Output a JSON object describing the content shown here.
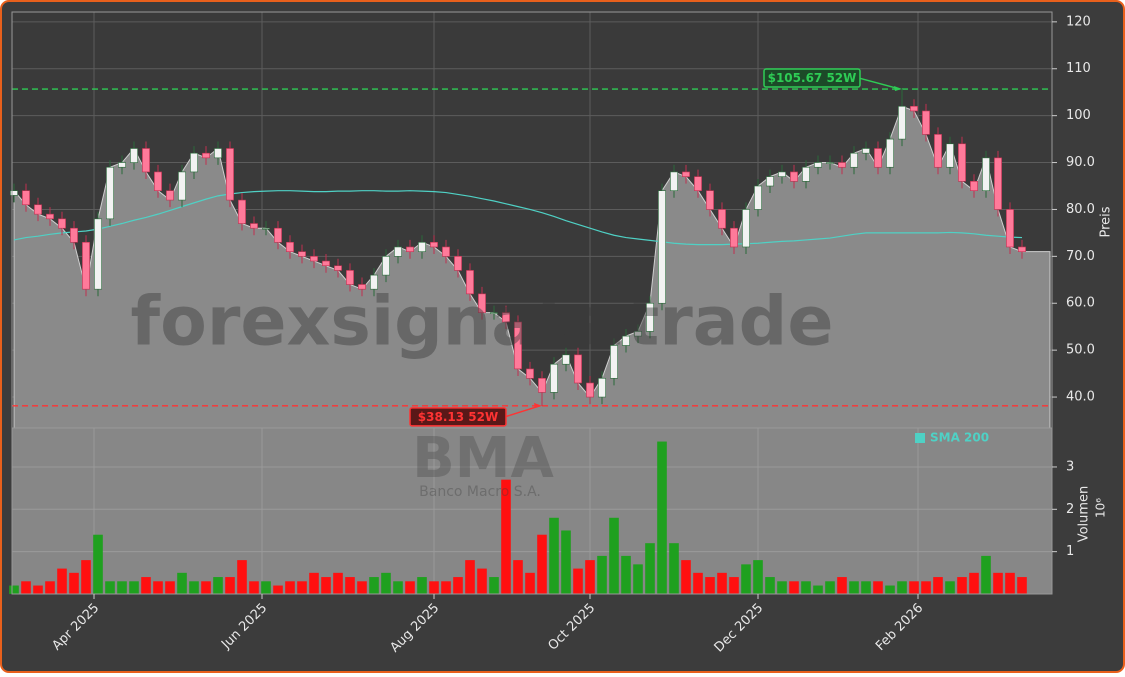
{
  "chart_data": [
    {
      "type": "candlestick",
      "x": [
        0,
        3,
        6,
        9,
        12,
        15,
        18,
        21,
        24,
        27,
        30,
        33,
        36,
        39,
        42,
        45,
        48,
        51,
        54,
        57,
        60,
        63,
        66,
        69,
        72,
        75,
        78,
        81,
        84,
        87,
        90,
        93,
        96,
        99,
        102,
        105,
        108,
        111,
        114,
        117,
        120,
        123,
        126,
        129,
        132,
        135,
        138,
        141,
        144,
        147,
        150,
        153,
        156,
        159,
        162,
        165,
        168,
        171,
        174,
        177,
        180,
        183,
        186,
        189,
        192,
        195,
        198,
        201,
        204,
        207,
        210,
        213,
        216,
        219,
        222,
        225,
        228,
        231,
        234,
        237,
        240,
        243,
        246,
        249,
        252
      ],
      "open": [
        83,
        84,
        81,
        79,
        78,
        76,
        73,
        63,
        78,
        89,
        90,
        93,
        88,
        84,
        82,
        88,
        92,
        91,
        93,
        82,
        77,
        76,
        76,
        73,
        71,
        70,
        69,
        68,
        67,
        64,
        63,
        66,
        70,
        72,
        71,
        73,
        72,
        70,
        67,
        62,
        58,
        58,
        56,
        46,
        44,
        41,
        47,
        49,
        43,
        40,
        44,
        51,
        53,
        54,
        60,
        84,
        88,
        87,
        84,
        80,
        76,
        72,
        80,
        85,
        87,
        88,
        86,
        89,
        90,
        90,
        89,
        92,
        93,
        89,
        95,
        102,
        101,
        96,
        89,
        94,
        86,
        84,
        91,
        80,
        72
      ],
      "high": [
        85.5,
        85.5,
        82.5,
        80.5,
        79.5,
        77.5,
        74.5,
        79.5,
        90.5,
        91.5,
        94.5,
        94.5,
        89.5,
        85.5,
        89.5,
        93.5,
        93.5,
        94.5,
        94.5,
        83.5,
        78.5,
        77.5,
        77.5,
        74.5,
        72.5,
        71.5,
        70.5,
        69.5,
        68.5,
        65.5,
        67.5,
        71.5,
        73.5,
        73.5,
        74.5,
        74.5,
        73.5,
        71.5,
        68.5,
        63.5,
        59.5,
        59.5,
        57.5,
        47.5,
        45.5,
        48.5,
        50.5,
        50.5,
        44.5,
        45.5,
        52.5,
        54.5,
        55.5,
        61.5,
        85.5,
        89.5,
        89.5,
        88.5,
        85.5,
        81.5,
        77.5,
        81.5,
        86.5,
        88.5,
        89.5,
        89.5,
        90.5,
        91.5,
        91.5,
        91.5,
        93.5,
        94.5,
        94.5,
        96.5,
        105.67,
        103.5,
        102.5,
        97.5,
        95.5,
        95.5,
        87.5,
        92.5,
        92.5,
        81.5,
        73.5
      ],
      "low": [
        81.5,
        79.5,
        77.5,
        76.5,
        74.5,
        71.5,
        61.5,
        61.5,
        76.5,
        87.5,
        88.5,
        86.5,
        82.5,
        80.5,
        80.5,
        86.5,
        89.5,
        89.5,
        80.5,
        75.5,
        74.5,
        74.5,
        71.5,
        69.5,
        68.5,
        67.5,
        66.5,
        65.5,
        62.5,
        61.5,
        61.5,
        64.5,
        68.5,
        69.5,
        69.5,
        70.5,
        68.5,
        65.5,
        60.5,
        56.5,
        56.5,
        54.5,
        44.5,
        42.5,
        38.13,
        39.5,
        45.5,
        41.5,
        38.5,
        38.5,
        42.5,
        49.5,
        51.5,
        52.5,
        58.5,
        82.5,
        85.5,
        82.5,
        78.5,
        74.5,
        70.5,
        70.5,
        78.5,
        83.5,
        85.5,
        84.5,
        84.5,
        87.5,
        88.5,
        87.5,
        87.5,
        90.5,
        87.5,
        87.5,
        93.5,
        99.5,
        94.5,
        87.5,
        87.5,
        84.5,
        82.5,
        82.5,
        78.5,
        70.5,
        69.5
      ],
      "close": [
        84,
        81,
        79,
        78,
        76,
        73,
        63,
        78,
        89,
        90,
        93,
        88,
        84,
        82,
        88,
        92,
        91,
        93,
        82,
        77,
        76,
        76,
        73,
        71,
        70,
        69,
        68,
        67,
        64,
        63,
        66,
        70,
        72,
        71,
        73,
        72,
        70,
        67,
        62,
        58,
        58,
        56,
        46,
        44,
        41,
        47,
        49,
        43,
        40,
        44,
        51,
        53,
        54,
        60,
        84,
        88,
        87,
        84,
        80,
        76,
        72,
        80,
        85,
        87,
        88,
        86,
        89,
        90,
        90,
        89,
        92,
        93,
        89,
        95,
        102,
        101,
        96,
        89,
        94,
        86,
        84,
        91,
        80,
        72,
        71
      ],
      "up_color": "#f2f2f2",
      "down_color": "#ff7a9a",
      "area_color": "#8a8a8a",
      "series": [
        {
          "name": "SMA 200",
          "color": "#4fd1c5",
          "values": [
            73.5,
            74,
            74.3,
            74.7,
            75,
            75.2,
            75.4,
            75.8,
            76.4,
            77,
            77.7,
            78.3,
            79,
            79.8,
            80.6,
            81.4,
            82.2,
            82.9,
            83.3,
            83.6,
            83.8,
            83.9,
            84,
            84,
            83.9,
            83.8,
            83.8,
            83.9,
            83.9,
            84,
            84,
            83.9,
            83.9,
            84,
            83.9,
            83.8,
            83.6,
            83.2,
            82.8,
            82.3,
            81.8,
            81.2,
            80.6,
            80,
            79.3,
            78.5,
            77.6,
            76.8,
            76,
            75.2,
            74.5,
            74,
            73.7,
            73.4,
            73.1,
            72.8,
            72.6,
            72.5,
            72.5,
            72.5,
            72.6,
            72.7,
            72.8,
            73,
            73.2,
            73.3,
            73.5,
            73.7,
            73.9,
            74.3,
            74.7,
            75,
            75,
            75,
            75,
            75,
            75,
            75,
            75.1,
            75,
            74.8,
            74.5,
            74.3,
            74.1,
            74
          ]
        }
      ],
      "xlim": [
        -0.5,
        259.5
      ],
      "xticks": [
        {
          "value": 20,
          "label": "Apr 2025"
        },
        {
          "value": 62,
          "label": "Jun 2025"
        },
        {
          "value": 105,
          "label": "Aug 2025"
        },
        {
          "value": 144,
          "label": "Oct 2025"
        },
        {
          "value": 186,
          "label": "Dec 2025"
        },
        {
          "value": 226,
          "label": "Feb 2026"
        }
      ],
      "ylim": [
        33.4,
        122.1
      ],
      "yticks": [
        {
          "value": 40,
          "label": "40.0"
        },
        {
          "value": 50,
          "label": "50.0"
        },
        {
          "value": 60,
          "label": "60.0"
        },
        {
          "value": 70,
          "label": "70.0"
        },
        {
          "value": 80,
          "label": "80.0"
        },
        {
          "value": 90,
          "label": "90.0"
        },
        {
          "value": 100,
          "label": "100"
        },
        {
          "value": 110,
          "label": "110"
        },
        {
          "value": 120,
          "label": "120"
        }
      ],
      "ylabel": "Preis",
      "grid": true,
      "annotations": [
        {
          "value": 105.67,
          "label": "$105.67 52W",
          "color": "#2ecc55"
        },
        {
          "value": 38.13,
          "label": "$38.13 52W",
          "color": "#ff3333"
        }
      ],
      "watermark": "forexsignals.trade",
      "symbol": "BMA",
      "company": "Banco Macro S.A."
    },
    {
      "type": "bar",
      "values": [
        0.2,
        0.3,
        0.2,
        0.3,
        0.6,
        0.5,
        0.8,
        1.4,
        0.3,
        0.3,
        0.3,
        0.4,
        0.3,
        0.3,
        0.5,
        0.3,
        0.3,
        0.4,
        0.4,
        0.8,
        0.3,
        0.3,
        0.2,
        0.3,
        0.3,
        0.5,
        0.4,
        0.5,
        0.4,
        0.3,
        0.4,
        0.5,
        0.3,
        0.3,
        0.4,
        0.3,
        0.3,
        0.4,
        0.8,
        0.6,
        0.4,
        2.7,
        0.8,
        0.5,
        1.4,
        1.8,
        1.5,
        0.6,
        0.8,
        0.9,
        1.8,
        0.9,
        0.7,
        1.2,
        3.6,
        1.2,
        0.8,
        0.5,
        0.4,
        0.5,
        0.4,
        0.7,
        0.8,
        0.4,
        0.3,
        0.3,
        0.3,
        0.2,
        0.3,
        0.4,
        0.3,
        0.3,
        0.3,
        0.2,
        0.3,
        0.3,
        0.3,
        0.4,
        0.3,
        0.4,
        0.5,
        0.9,
        0.5,
        0.5,
        0.4
      ],
      "up_color": "#1fa01f",
      "down_color": "#ff1010",
      "ylim": [
        0,
        3.92
      ],
      "yticks": [
        1,
        2,
        3
      ],
      "ylabel": "Volumen",
      "scale_label": "10⁶"
    }
  ]
}
